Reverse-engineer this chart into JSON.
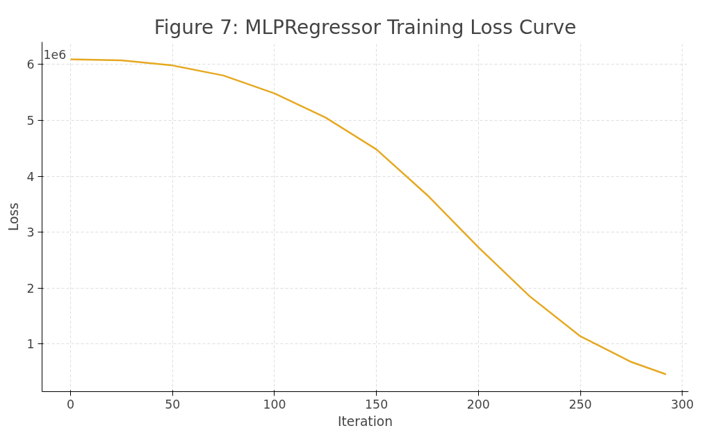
{
  "chart_data": {
    "type": "line",
    "title": "Figure 7: MLPRegressor Training Loss Curve",
    "xlabel": "Iteration",
    "ylabel": "Loss",
    "annotations": [
      "1e6"
    ],
    "x": [
      0,
      25,
      50,
      75,
      100,
      125,
      150,
      175,
      200,
      225,
      250,
      275,
      292
    ],
    "series": [
      {
        "color": "#e6a820",
        "values": [
          6.09,
          6.07,
          5.98,
          5.8,
          5.48,
          5.05,
          4.48,
          3.66,
          2.73,
          1.86,
          1.14,
          0.68,
          0.46
        ]
      }
    ],
    "xlim": [
      -14,
      303
    ],
    "ylim": [
      0.15,
      6.4
    ],
    "xticks": [
      0,
      50,
      100,
      150,
      200,
      250,
      300
    ],
    "yticks": [
      1,
      2,
      3,
      4,
      5,
      6
    ],
    "grid": true,
    "marker": "none",
    "line_style": "solid"
  }
}
